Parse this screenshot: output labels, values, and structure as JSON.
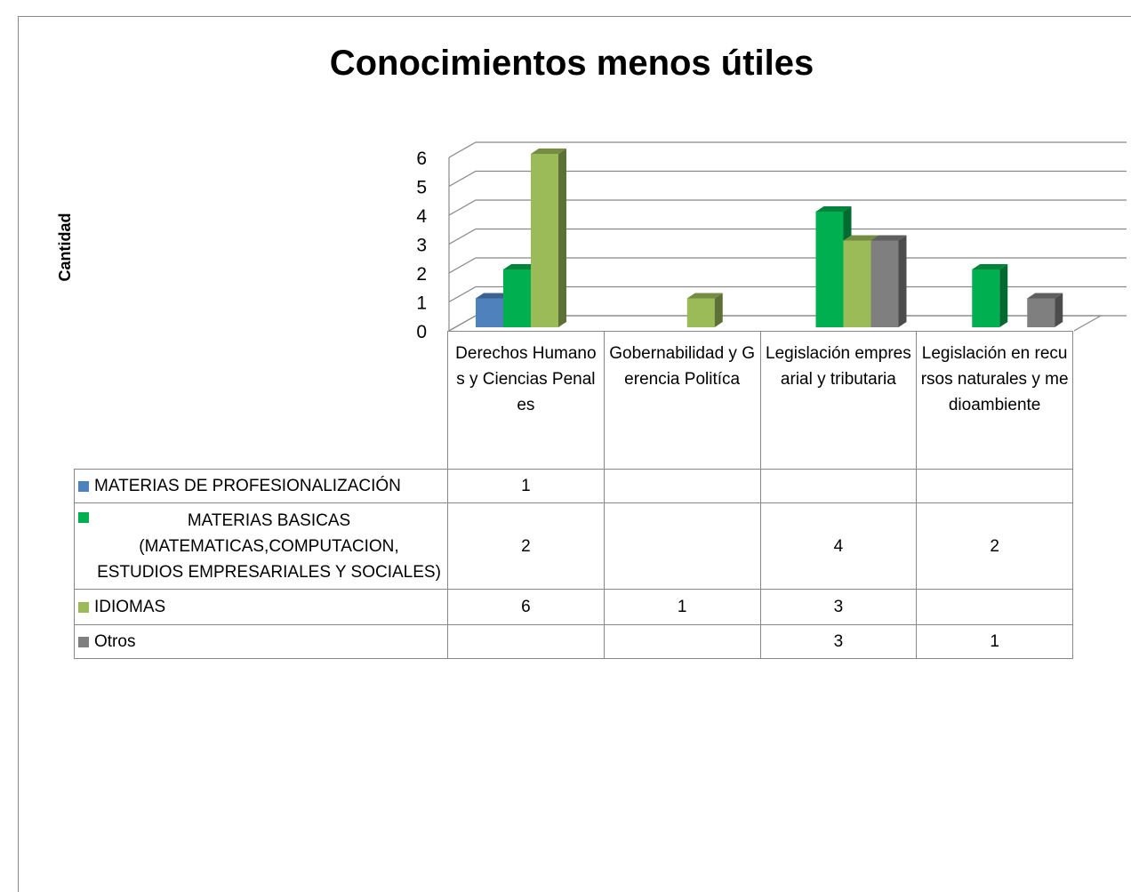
{
  "chart_data": {
    "type": "bar3d",
    "title": "Conocimientos menos útiles",
    "y_label": "Cantidad",
    "categories": [
      "Derechos Humanos y Ciencias Penales",
      "Gobernabilidad y Gerencia Politíca",
      "Legislación empresarial y tributaria",
      "Legislación en recursos naturales y medioambiente"
    ],
    "series": [
      {
        "name": "MATERIAS DE PROFESIONALIZACIÓN",
        "color": "#4f81bd",
        "values": [
          1,
          null,
          null,
          null
        ]
      },
      {
        "name": "MATERIAS BASICAS (MATEMATICAS,COMPUTACION, ESTUDIOS EMPRESARIALES Y SOCIALES)",
        "color": "#00b050",
        "values": [
          2,
          null,
          4,
          2
        ]
      },
      {
        "name": "IDIOMAS",
        "color": "#9bbb59",
        "values": [
          6,
          1,
          3,
          null
        ]
      },
      {
        "name": "Otros",
        "color": "#7f7f7f",
        "values": [
          null,
          null,
          3,
          1
        ]
      }
    ],
    "ylim": [
      0,
      6
    ],
    "yticks": [
      0,
      1,
      2,
      3,
      4,
      5,
      6
    ],
    "grid": true,
    "data_table": true
  }
}
